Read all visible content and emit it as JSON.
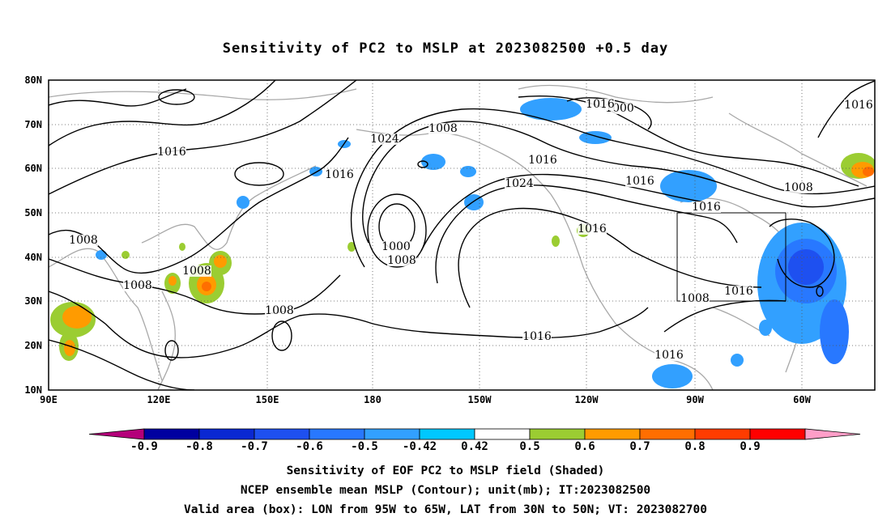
{
  "title": "Sensitivity of PC2 to MSLP at 2023082500 +0.5 day",
  "lat_labels": [
    "80N",
    "70N",
    "60N",
    "50N",
    "40N",
    "30N",
    "20N",
    "10N"
  ],
  "lon_labels": [
    "90E",
    "120E",
    "150E",
    "180",
    "150W",
    "120W",
    "90W",
    "60W"
  ],
  "colorbar": {
    "labels": [
      "-0.9",
      "-0.8",
      "-0.7",
      "-0.6",
      "-0.5",
      "-0.42",
      "0.42",
      "0.5",
      "0.6",
      "0.7",
      "0.8",
      "0.9"
    ],
    "colors": [
      "#b4007a",
      "#0000a0",
      "#0a28d2",
      "#1e50f0",
      "#2878ff",
      "#32a0ff",
      "#00c8ff",
      "#ffffff",
      "#9bcd32",
      "#ff9b00",
      "#ff6e00",
      "#ff3c00",
      "#ff0000",
      "#ff9ec8"
    ]
  },
  "contour_labels": [
    "1000",
    "1008",
    "1016",
    "1024",
    "1008",
    "1016",
    "1016",
    "1024",
    "1016",
    "1008",
    "1000",
    "1008",
    "1016",
    "1016",
    "1008",
    "1016",
    "1008",
    "1008",
    "1008",
    "1016",
    "1016",
    "1016",
    "1016"
  ],
  "captions": [
    "Sensitivity of EOF PC2 to MSLP field (Shaded)",
    "NCEP ensemble mean MSLP (Contour); unit(mb); IT:2023082500",
    "Valid area (box): LON from 95W to 65W, LAT from 30N to 50N; VT: 2023082700"
  ]
}
